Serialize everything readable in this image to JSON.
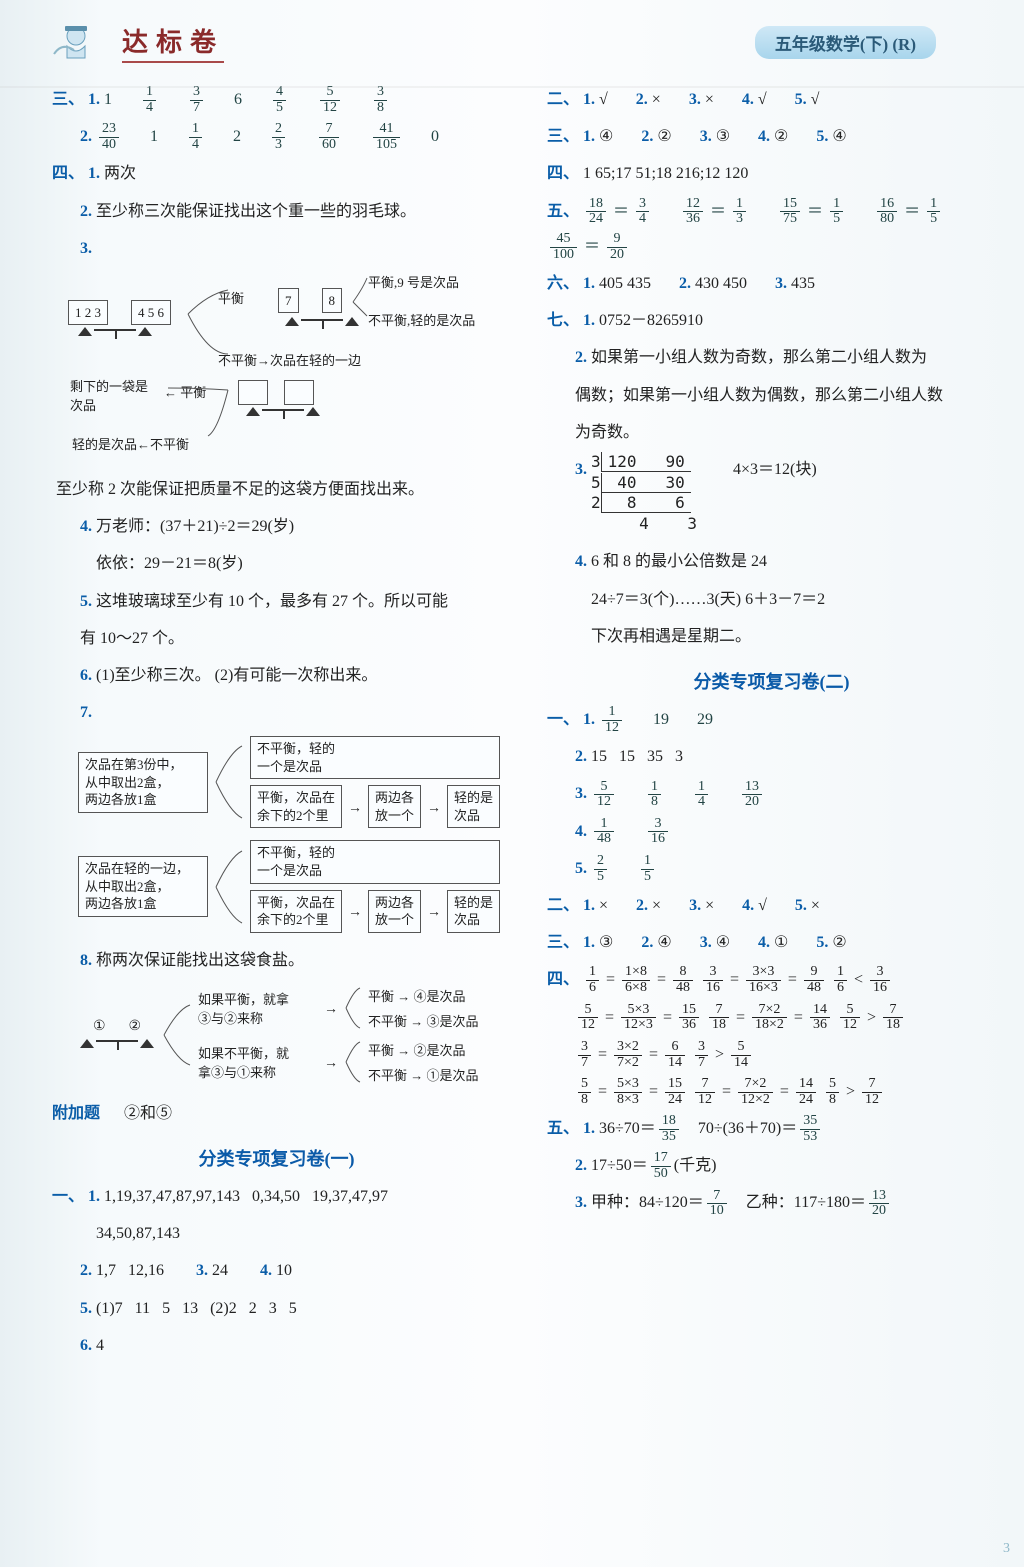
{
  "header": {
    "series": "达标卷",
    "right_pill": "五年级数学(下) (R)"
  },
  "left": {
    "q3": {
      "label": "三、",
      "r1_label": "1.",
      "r1": [
        "1",
        "1/4",
        "3/7",
        "6",
        "4/5",
        "5/12",
        "3/8"
      ],
      "r2_label": "2.",
      "r2": [
        "23/40",
        "1",
        "1/4",
        "2",
        "2/3",
        "7/60",
        "41/105",
        "0"
      ]
    },
    "q4": {
      "label": "四、",
      "i1": "1. 两次",
      "i2": "2. 至少称三次能保证找出这个重一些的羽毛球。",
      "i3": "3.",
      "diagram3": {
        "boxes": [
          "1 2 3",
          "4 5 6",
          "7",
          "8"
        ],
        "t_balance_right": "平衡,9 号是次品",
        "t_unbalance_right": "不平衡,轻的是次品",
        "t_unbalance_mid": "不平衡→次品在轻的一边",
        "t_balance_mid": "平衡",
        "t_remain": "剩下的一袋是次品",
        "t_balance2": "← 平衡",
        "t_light": "轻的是次品←不平衡"
      },
      "i3b": "至少称 2 次能保证把质量不足的这袋方便面找出来。",
      "i4a": "4. 万老师：(37＋21)÷2＝29(岁)",
      "i4b": "依依：29－21＝8(岁)",
      "i5a": "5. 这堆玻璃球至少有 10 个，最多有 27 个。所以可能",
      "i5b": "有 10～27 个。",
      "i6": "6. (1)至少称三次。 (2)有可能一次称出来。",
      "i7": "7.",
      "diagram7": {
        "left1": "次品在第3份中，\n从中取出2盒，\n两边各放1盒",
        "left2": "次品在轻的一边，\n从中取出2盒，\n两边各放1盒",
        "top": "不平衡，轻的\n一个是次品",
        "mid": "平衡，次品在\n余下的2个里",
        "midR1": "两边各\n放一个",
        "midR2": "轻的是\n次品"
      },
      "i8": "8. 称两次保证能找出这袋食盐。",
      "diagram8": {
        "c1": "①",
        "c2": "②",
        "l1": "如果平衡，就拿\n③与②来称",
        "l2": "如果不平衡，就\n拿③与①来称",
        "r1a": "平衡 → ④是次品",
        "r1b": "不平衡 → ③是次品",
        "r2a": "平衡 → ②是次品",
        "r2b": "不平衡 → ①是次品"
      },
      "extra_label": "附加题",
      "extra": "②和⑤"
    },
    "section1": {
      "title": "分类专项复习卷(一)",
      "q1_label": "一、",
      "q1_l1": "1. 1,19,37,47,87,97,143    0,34,50    19,37,47,97",
      "q1_l2": "34,50,87,143",
      "q1_l3": [
        "2. 1,7   12,16",
        "3. 24",
        "4. 10"
      ],
      "q1_l4": "5. (1)7   11   5   13   (2)2   2   3   5",
      "q1_l5": "6. 4"
    }
  },
  "right": {
    "q2": {
      "label": "二、",
      "items": [
        "1. √",
        "2. ×",
        "3. ×",
        "4. √",
        "5. √"
      ]
    },
    "q3": {
      "label": "三、",
      "items": [
        "1. ④",
        "2. ②",
        "3. ③",
        "4. ②",
        "5. ④"
      ]
    },
    "q4": {
      "label": "四、",
      "text": "1   65;17   51;18   216;12   120"
    },
    "q5": {
      "label": "五、",
      "pairs": [
        [
          "18/24",
          "3/4"
        ],
        [
          "12/36",
          "1/3"
        ],
        [
          "15/75",
          "1/5"
        ],
        [
          "16/80",
          "1/5"
        ],
        [
          "45/100",
          "9/20"
        ]
      ]
    },
    "q6": {
      "label": "六、",
      "items": [
        "1. 405   435",
        "2. 430   450",
        "3. 435"
      ]
    },
    "q7": {
      "label": "七、",
      "i1": "1. 0752－8265910",
      "i2a": "2. 如果第一小组人数为奇数，那么第二小组人数为",
      "i2b": "偶数；如果第一小组人数为偶数，那么第二小组人数",
      "i2c": "为奇数。",
      "i3head": "3.",
      "i3calc": "4×3＝12(块)",
      "i3div": {
        "r1": "3 | 120   90",
        "r2": "5 |  40   30",
        "r3": "2 |   8    6",
        "r4": "       4    3"
      },
      "i4a": "4. 6 和 8 的最小公倍数是 24",
      "i4b": "24÷7＝3(个)……3(天)   6＋3－7＝2",
      "i4c": "下次再相遇是星期二。"
    },
    "section2": {
      "title": "分类专项复习卷(二)",
      "q1_label": "一、",
      "q1_1": [
        "1.",
        "1/12",
        "19",
        "29"
      ],
      "q1_2": "2. 15   15   35   3",
      "q1_3": [
        "3.",
        "5/12",
        "1/8",
        "1/4",
        "13/20"
      ],
      "q1_4": [
        "4.",
        "1/48",
        "3/16"
      ],
      "q1_5": [
        "5.",
        "2/5",
        "1/5"
      ],
      "q2": {
        "label": "二、",
        "items": [
          "1. ×",
          "2. ×",
          "3. ×",
          "4. √",
          "5. ×"
        ]
      },
      "q3": {
        "label": "三、",
        "items": [
          "1. ③",
          "2. ④",
          "3. ④",
          "4. ①",
          "5. ②"
        ]
      },
      "q4": {
        "label": "四、",
        "lines": [
          "1/6 = 1×8/6×8 = 8/48   3/16 = 3×3/16×3 = 9/48   1/6 < 3/16",
          "5/12 = 5×3/12×3 = 15/36   7/18 = 7×2/18×2 = 14/36   5/12 > 7/18",
          "3/7 = 3×2/7×2 = 6/14   3/7 > 5/14",
          "5/8 = 5×3/8×3 = 15/24   7/12 = 7×2/12×2 = 14/24   5/8 > 7/12"
        ]
      },
      "q5": {
        "label": "五、",
        "l1a": "1. 36÷70＝",
        "l1f1": "18/35",
        "l1b": "   70÷(36＋70)＝",
        "l1f2": "35/53",
        "l2a": "2. 17÷50＝",
        "l2f": "17/50",
        "l2b": "(千克)",
        "l3a": "3. 甲种：84÷120＝",
        "l3f1": "7/10",
        "l3b": "   乙种：117÷180＝",
        "l3f2": "13/20"
      }
    }
  },
  "colors": {
    "blue": "#0a5da8",
    "blue_light": "#2a7ac0",
    "header_brown": "#8a2a2a",
    "pill_bg_top": "#cfe8f6",
    "pill_bg_bot": "#a8d5ec",
    "pill_text": "#2b5a78",
    "page_bg": "#f4f7f8"
  },
  "page_number": "3"
}
